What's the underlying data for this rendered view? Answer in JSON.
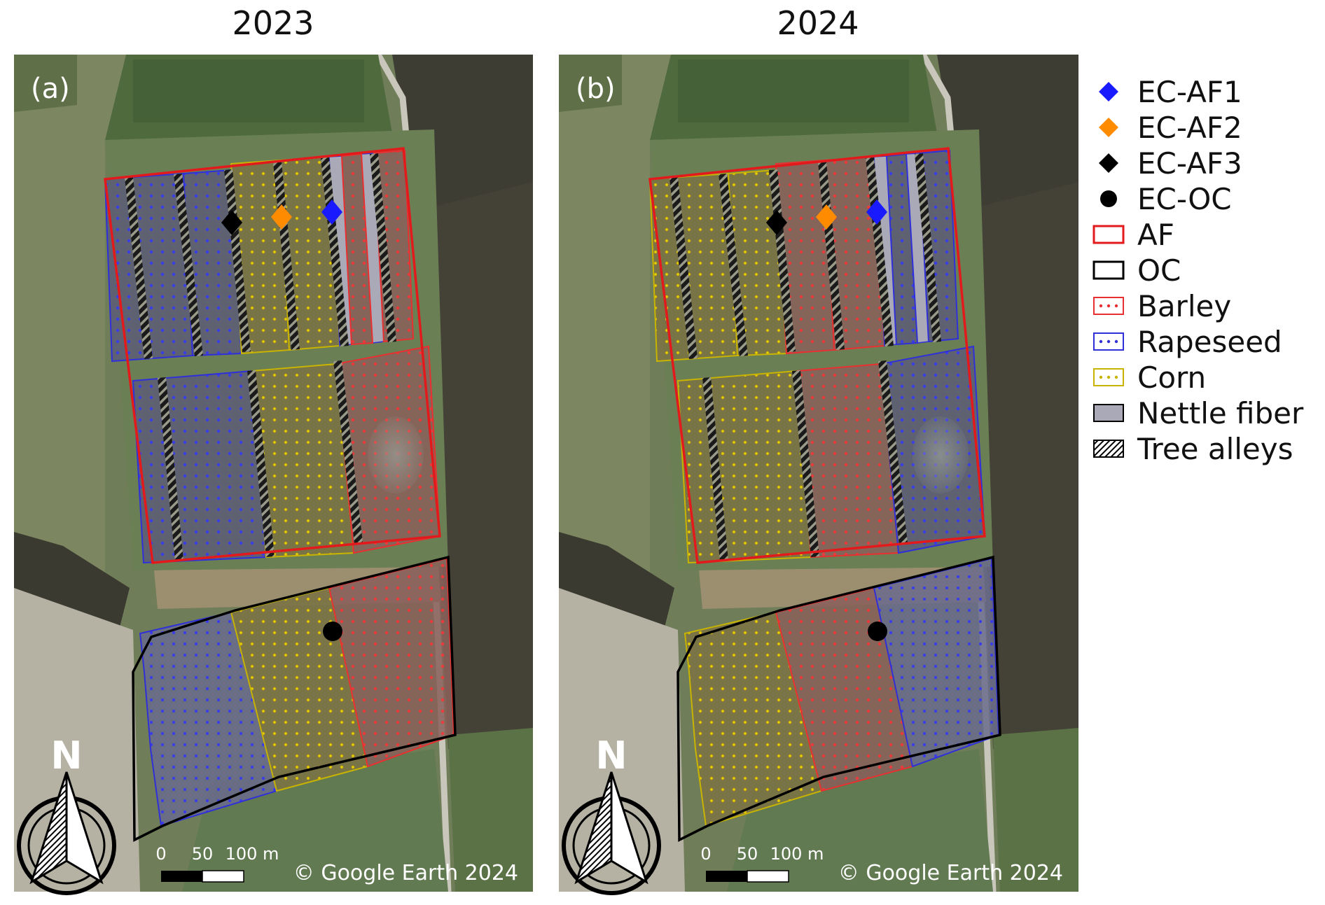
{
  "panels": [
    {
      "id": "a",
      "year_title": "2023",
      "panel_label": "(a)",
      "copyright": "© Google Earth 2024",
      "af_block_crops": {
        "north_strips": [
          "rapeseed",
          "rapeseed",
          "corn",
          "corn",
          "barley",
          "barley"
        ],
        "south_strips": [
          "rapeseed",
          "corn",
          "barley"
        ]
      },
      "oc_field_crops": [
        "rapeseed",
        "corn",
        "barley"
      ]
    },
    {
      "id": "b",
      "year_title": "2024",
      "panel_label": "(b)",
      "copyright": "© Google Earth 2024",
      "af_block_crops": {
        "north_strips": [
          "corn",
          "corn",
          "barley",
          "barley",
          "rapeseed",
          "rapeseed"
        ],
        "south_strips": [
          "corn",
          "barley",
          "rapeseed"
        ]
      },
      "oc_field_crops": [
        "corn",
        "barley",
        "rapeseed"
      ]
    }
  ],
  "scale_bar": {
    "ticks": [
      "0",
      "50",
      "100 m"
    ]
  },
  "north_arrow": {
    "label": "N"
  },
  "legend": [
    {
      "key": "ec_af1",
      "label": "EC-AF1",
      "symbol": "diamond",
      "color": "#1a1aff"
    },
    {
      "key": "ec_af2",
      "label": "EC-AF2",
      "symbol": "diamond",
      "color": "#ff8c00"
    },
    {
      "key": "ec_af3",
      "label": "EC-AF3",
      "symbol": "diamond",
      "color": "#000000"
    },
    {
      "key": "ec_oc",
      "label": "EC-OC",
      "symbol": "circle",
      "color": "#000000"
    },
    {
      "key": "af",
      "label": "AF",
      "symbol": "outline",
      "color": "#e31a1c"
    },
    {
      "key": "oc",
      "label": "OC",
      "symbol": "outline",
      "color": "#000000"
    },
    {
      "key": "barley",
      "label": "Barley",
      "symbol": "dots",
      "color": "#e83030"
    },
    {
      "key": "rapeseed",
      "label": "Rapeseed",
      "symbol": "dots",
      "color": "#3030d8"
    },
    {
      "key": "corn",
      "label": "Corn",
      "symbol": "dots",
      "color": "#c8b400"
    },
    {
      "key": "nettle",
      "label": "Nettle fiber",
      "symbol": "fill",
      "color": "#a9a9b8"
    },
    {
      "key": "tree",
      "label": "Tree alleys",
      "symbol": "hatch",
      "color": "#000000"
    }
  ],
  "colors": {
    "barley": "#e83030",
    "rapeseed": "#3030d8",
    "corn": "#c8b400",
    "nettle": "#a9a9b8",
    "af_outline": "#e31a1c",
    "oc_outline": "#000000"
  }
}
